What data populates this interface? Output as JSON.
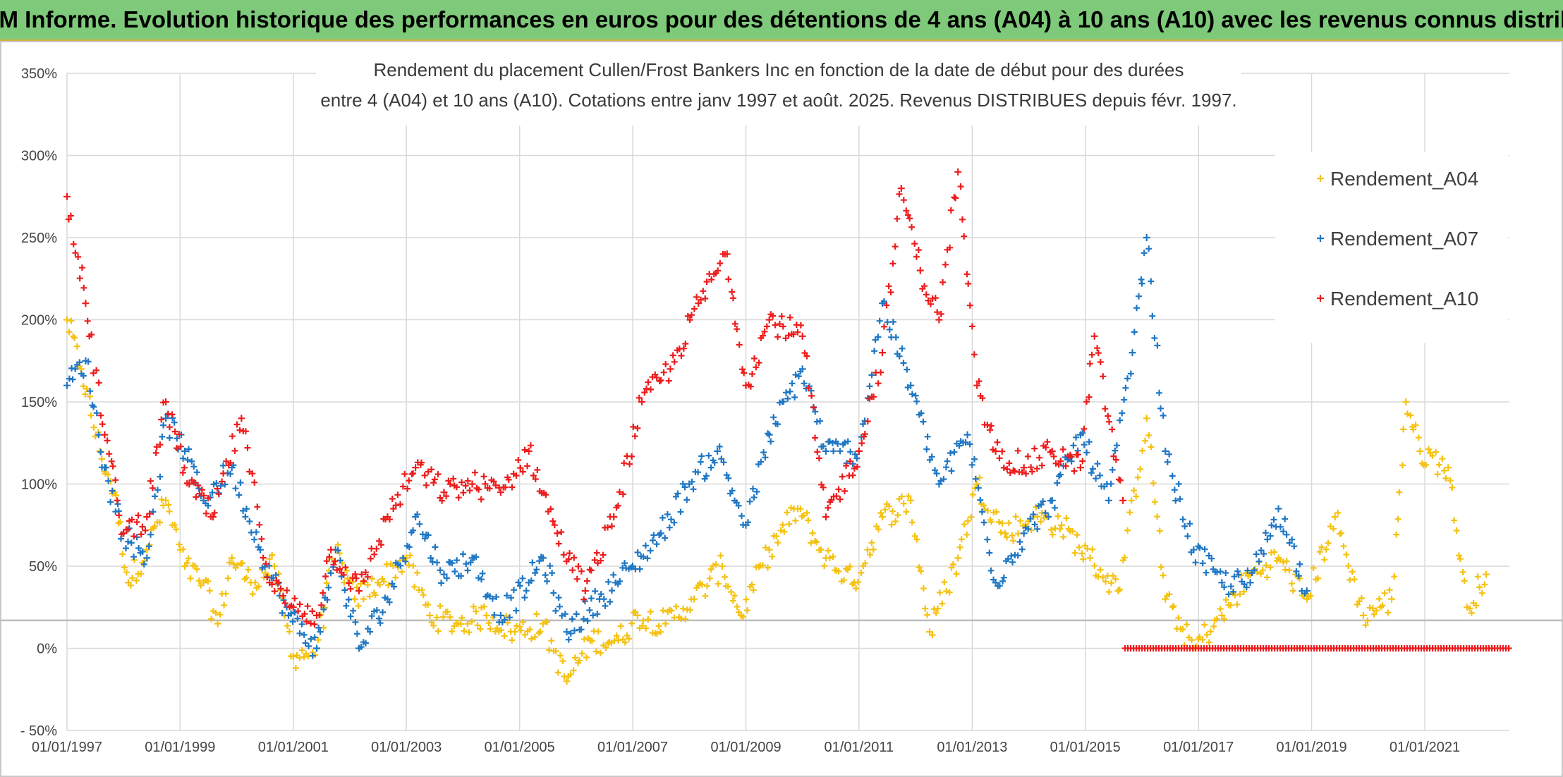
{
  "banner": {
    "title": "ADAM Informe. Evolution historique des performances en euros pour des détentions de 4 ans (A04) à 10 ans (A10) avec les revenus connus distribués"
  },
  "chart_data": {
    "type": "scatter",
    "title_line1": "Rendement du placement Cullen/Frost Bankers Inc en fonction de la date de début pour des durées",
    "title_line2": "entre 4 (A04) et 10 ans (A10). Cotations entre janv 1997 et août. 2025. Revenus DISTRIBUES depuis févr. 1997.",
    "xlabel": "",
    "ylabel": "",
    "xlim": [
      "1997-01-01",
      "2022-07-01"
    ],
    "ylim": [
      -50,
      350
    ],
    "y_ticks": [
      -50,
      0,
      50,
      100,
      150,
      200,
      250,
      300,
      350
    ],
    "y_tick_labels": [
      "- 50%",
      "0%",
      "50%",
      "100%",
      "150%",
      "200%",
      "250%",
      "300%",
      "350%"
    ],
    "x_ticks": [
      "1997-01-01",
      "1999-01-01",
      "2001-01-01",
      "2003-01-01",
      "2005-01-01",
      "2007-01-01",
      "2009-01-01",
      "2011-01-01",
      "2013-01-01",
      "2015-01-01",
      "2017-01-01",
      "2019-01-01",
      "2021-01-01"
    ],
    "x_tick_labels": [
      "01/01/1997",
      "01/01/1999",
      "01/01/2001",
      "01/01/2003",
      "01/01/2005",
      "01/01/2007",
      "01/01/2009",
      "01/01/2011",
      "01/01/2013",
      "01/01/2015",
      "01/01/2017",
      "01/01/2019",
      "01/01/2021"
    ],
    "grid": true,
    "legend_position": "top-right",
    "reference_line_y": 17,
    "series": [
      {
        "name": "Rendement_A04",
        "color": "#f5c211",
        "points": [
          [
            "1997-01-01",
            200
          ],
          [
            "1997-04-01",
            170
          ],
          [
            "1997-08-01",
            120
          ],
          [
            "1997-11-01",
            95
          ],
          [
            "1998-02-01",
            40
          ],
          [
            "1998-06-01",
            60
          ],
          [
            "1998-10-01",
            90
          ],
          [
            "1999-02-01",
            50
          ],
          [
            "1999-06-01",
            40
          ],
          [
            "1999-09-01",
            15
          ],
          [
            "1999-12-01",
            55
          ],
          [
            "2000-04-01",
            40
          ],
          [
            "2000-09-01",
            50
          ],
          [
            "2001-01-01",
            -5
          ],
          [
            "2001-06-01",
            0
          ],
          [
            "2001-10-01",
            60
          ],
          [
            "2002-02-01",
            30
          ],
          [
            "2002-07-01",
            40
          ],
          [
            "2003-01-01",
            55
          ],
          [
            "2003-06-01",
            20
          ],
          [
            "2003-12-01",
            15
          ],
          [
            "2004-06-01",
            20
          ],
          [
            "2004-12-01",
            10
          ],
          [
            "2005-06-01",
            15
          ],
          [
            "2005-11-01",
            -20
          ],
          [
            "2006-04-01",
            5
          ],
          [
            "2006-10-01",
            5
          ],
          [
            "2007-02-01",
            20
          ],
          [
            "2007-08-01",
            15
          ],
          [
            "2008-02-01",
            30
          ],
          [
            "2008-08-01",
            50
          ],
          [
            "2008-12-01",
            20
          ],
          [
            "2009-06-01",
            60
          ],
          [
            "2009-12-01",
            85
          ],
          [
            "2010-06-01",
            55
          ],
          [
            "2010-12-01",
            40
          ],
          [
            "2011-06-01",
            80
          ],
          [
            "2011-12-01",
            90
          ],
          [
            "2012-04-01",
            10
          ],
          [
            "2012-10-01",
            55
          ],
          [
            "2013-02-01",
            100
          ],
          [
            "2013-08-01",
            70
          ],
          [
            "2014-02-01",
            80
          ],
          [
            "2014-08-01",
            75
          ],
          [
            "2015-02-01",
            55
          ],
          [
            "2015-08-01",
            35
          ],
          [
            "2016-02-01",
            140
          ],
          [
            "2016-06-01",
            30
          ],
          [
            "2016-12-01",
            0
          ],
          [
            "2017-06-01",
            20
          ],
          [
            "2017-12-01",
            45
          ],
          [
            "2018-06-01",
            55
          ],
          [
            "2018-12-01",
            30
          ],
          [
            "2019-06-01",
            80
          ],
          [
            "2019-12-01",
            20
          ],
          [
            "2020-06-01",
            30
          ],
          [
            "2020-09-01",
            150
          ],
          [
            "2020-12-01",
            120
          ],
          [
            "2021-06-01",
            110
          ],
          [
            "2021-10-01",
            25
          ],
          [
            "2022-02-01",
            45
          ]
        ]
      },
      {
        "name": "Rendement_A07",
        "color": "#1f77c4",
        "points": [
          [
            "1997-01-01",
            160
          ],
          [
            "1997-05-01",
            175
          ],
          [
            "1997-09-01",
            110
          ],
          [
            "1998-01-01",
            70
          ],
          [
            "1998-06-01",
            55
          ],
          [
            "1998-10-01",
            140
          ],
          [
            "1999-02-01",
            120
          ],
          [
            "1999-06-01",
            90
          ],
          [
            "1999-12-01",
            110
          ],
          [
            "2000-06-01",
            60
          ],
          [
            "2000-12-01",
            20
          ],
          [
            "2001-06-01",
            0
          ],
          [
            "2001-10-01",
            60
          ],
          [
            "2002-03-01",
            0
          ],
          [
            "2002-09-01",
            30
          ],
          [
            "2003-03-01",
            80
          ],
          [
            "2003-09-01",
            45
          ],
          [
            "2004-03-01",
            55
          ],
          [
            "2004-09-01",
            20
          ],
          [
            "2005-03-01",
            40
          ],
          [
            "2005-06-01",
            55
          ],
          [
            "2005-11-01",
            10
          ],
          [
            "2006-06-01",
            30
          ],
          [
            "2007-01-01",
            50
          ],
          [
            "2007-07-01",
            70
          ],
          [
            "2008-01-01",
            100
          ],
          [
            "2008-07-01",
            120
          ],
          [
            "2009-01-01",
            75
          ],
          [
            "2009-06-01",
            130
          ],
          [
            "2010-01-01",
            170
          ],
          [
            "2010-06-01",
            120
          ],
          [
            "2011-01-01",
            120
          ],
          [
            "2011-06-01",
            210
          ],
          [
            "2011-12-01",
            160
          ],
          [
            "2012-06-01",
            100
          ],
          [
            "2012-12-01",
            130
          ],
          [
            "2013-06-01",
            40
          ],
          [
            "2013-12-01",
            70
          ],
          [
            "2014-06-01",
            90
          ],
          [
            "2014-12-01",
            130
          ],
          [
            "2015-06-01",
            90
          ],
          [
            "2015-11-01",
            180
          ],
          [
            "2016-02-01",
            250
          ],
          [
            "2016-06-01",
            120
          ],
          [
            "2016-12-01",
            60
          ],
          [
            "2017-06-01",
            40
          ],
          [
            "2017-12-01",
            40
          ],
          [
            "2018-06-01",
            85
          ],
          [
            "2018-12-01",
            35
          ]
        ]
      },
      {
        "name": "Rendement_A10",
        "color": "#ee1c1c",
        "points": [
          [
            "1997-01-01",
            275
          ],
          [
            "1997-05-01",
            210
          ],
          [
            "1997-09-01",
            130
          ],
          [
            "1998-01-01",
            70
          ],
          [
            "1998-06-01",
            80
          ],
          [
            "1998-10-01",
            150
          ],
          [
            "1999-03-01",
            100
          ],
          [
            "1999-08-01",
            80
          ],
          [
            "2000-02-01",
            140
          ],
          [
            "2000-08-01",
            40
          ],
          [
            "2001-01-01",
            25
          ],
          [
            "2001-06-01",
            20
          ],
          [
            "2001-09-01",
            60
          ],
          [
            "2002-03-01",
            35
          ],
          [
            "2002-09-01",
            80
          ],
          [
            "2003-03-01",
            110
          ],
          [
            "2003-09-01",
            95
          ],
          [
            "2004-03-01",
            100
          ],
          [
            "2004-09-01",
            95
          ],
          [
            "2005-03-01",
            120
          ],
          [
            "2005-09-01",
            70
          ],
          [
            "2006-03-01",
            35
          ],
          [
            "2006-09-01",
            80
          ],
          [
            "2007-03-01",
            150
          ],
          [
            "2007-09-01",
            170
          ],
          [
            "2008-03-01",
            210
          ],
          [
            "2008-09-01",
            240
          ],
          [
            "2009-01-01",
            160
          ],
          [
            "2009-06-01",
            200
          ],
          [
            "2010-01-01",
            190
          ],
          [
            "2010-06-01",
            80
          ],
          [
            "2011-01-01",
            120
          ],
          [
            "2011-06-01",
            180
          ],
          [
            "2011-10-01",
            280
          ],
          [
            "2012-02-01",
            230
          ],
          [
            "2012-06-01",
            200
          ],
          [
            "2012-10-01",
            290
          ],
          [
            "2013-02-01",
            160
          ],
          [
            "2013-06-01",
            120
          ],
          [
            "2013-12-01",
            110
          ],
          [
            "2014-06-01",
            120
          ],
          [
            "2014-12-01",
            110
          ],
          [
            "2015-03-01",
            190
          ],
          [
            "2015-09-01",
            90
          ]
        ],
        "zero_run": {
          "start": "2015-09-15",
          "end": "2022-07-01",
          "value": 0
        }
      }
    ]
  }
}
